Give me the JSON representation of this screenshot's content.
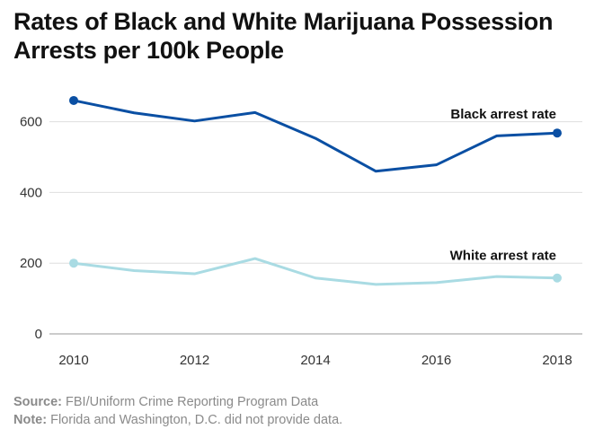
{
  "chart_data": {
    "type": "line",
    "title": "Rates of Black and White Marijuana Possession Arrests per 100k People",
    "xlabel": "",
    "ylabel": "",
    "x": [
      2010,
      2011,
      2012,
      2013,
      2014,
      2015,
      2016,
      2017,
      2018
    ],
    "x_ticks": [
      "2010",
      "2012",
      "2014",
      "2016",
      "2018"
    ],
    "y_ticks": [
      "0",
      "200",
      "400",
      "600"
    ],
    "ylim": [
      0,
      700
    ],
    "grid": true,
    "series": [
      {
        "name": "Black arrest rate",
        "values": [
          660,
          625,
          602,
          626,
          553,
          460,
          478,
          560,
          568
        ],
        "color": "#0a4fa3"
      },
      {
        "name": "White arrest rate",
        "values": [
          200,
          179,
          170,
          213,
          158,
          140,
          145,
          162,
          158
        ],
        "color": "#a9dbe3"
      }
    ]
  },
  "footer": {
    "source_label": "Source:",
    "source_text": " FBI/Uniform Crime Reporting Program Data",
    "note_label": "Note:",
    "note_text": " Florida and Washington, D.C. did not provide data."
  }
}
